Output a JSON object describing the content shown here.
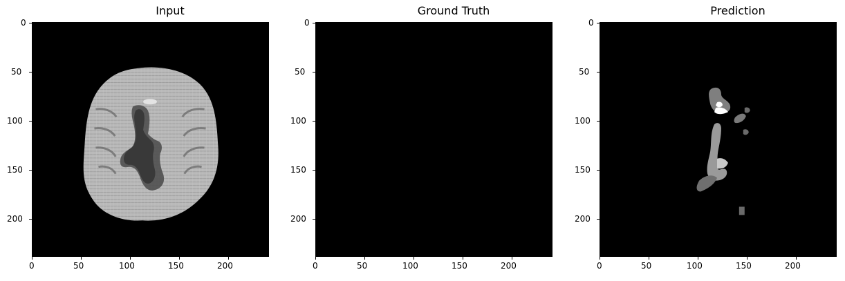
{
  "figure": {
    "panels": [
      {
        "title": "Input"
      },
      {
        "title": "Ground Truth"
      },
      {
        "title": "Prediction"
      }
    ],
    "y_ticks": [
      "0",
      "50",
      "100",
      "150",
      "200"
    ],
    "x_ticks": [
      "0",
      "50",
      "100",
      "150",
      "200"
    ],
    "image_bg": "#000000"
  }
}
